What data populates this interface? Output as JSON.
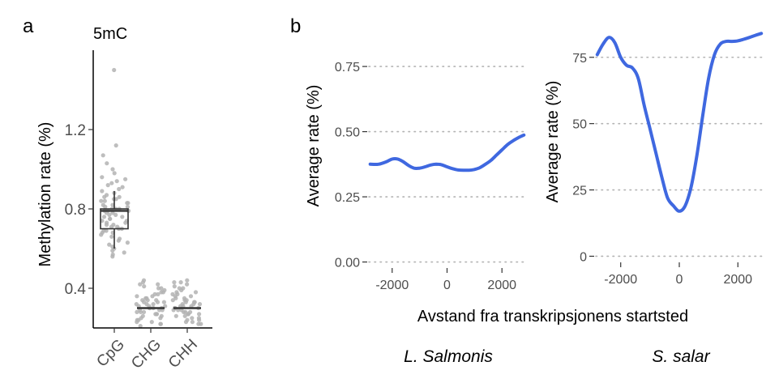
{
  "panel_a": {
    "letter": "a",
    "subtitle": "5mC"
  },
  "panel_b": {
    "letter": "b",
    "shared_xlabel": "Avstand fra transkripsjonens startsted"
  },
  "chart_data": [
    {
      "type": "box",
      "panel": "a",
      "title": "5mC",
      "xlabel": "",
      "ylabel": "Methylation rate (%)",
      "categories": [
        "CpG",
        "CHG",
        "CHH"
      ],
      "ylim": [
        0.2,
        1.6
      ],
      "yticks": [
        0.4,
        0.8,
        1.2
      ],
      "ytick_labels": [
        "0.4",
        "0.8",
        "1.2"
      ],
      "boxes": [
        {
          "category": "CpG",
          "min": 0.6,
          "q1": 0.7,
          "median": 0.79,
          "q3": 0.8,
          "max": 0.89
        },
        {
          "category": "CHG",
          "min": 0.3,
          "q1": 0.3,
          "median": 0.3,
          "q3": 0.3,
          "max": 0.3
        },
        {
          "category": "CHH",
          "min": 0.3,
          "q1": 0.3,
          "median": 0.3,
          "q3": 0.3,
          "max": 0.3
        }
      ],
      "points": {
        "CpG": [
          1.5,
          1.12,
          1.07,
          1.03,
          1.0,
          0.98,
          0.96,
          0.95,
          0.94,
          0.93,
          0.92,
          0.91,
          0.9,
          0.89,
          0.88,
          0.87,
          0.86,
          0.86,
          0.85,
          0.85,
          0.84,
          0.84,
          0.83,
          0.83,
          0.82,
          0.82,
          0.81,
          0.81,
          0.8,
          0.8,
          0.8,
          0.79,
          0.79,
          0.79,
          0.78,
          0.78,
          0.77,
          0.77,
          0.76,
          0.76,
          0.75,
          0.75,
          0.74,
          0.74,
          0.73,
          0.73,
          0.72,
          0.72,
          0.71,
          0.71,
          0.7,
          0.7,
          0.69,
          0.69,
          0.68,
          0.68,
          0.67,
          0.66,
          0.65,
          0.64,
          0.63,
          0.62,
          0.61,
          0.6,
          0.59,
          0.58,
          0.57,
          0.56
        ],
        "CHG": [
          0.44,
          0.43,
          0.42,
          0.42,
          0.41,
          0.4,
          0.4,
          0.39,
          0.38,
          0.38,
          0.37,
          0.37,
          0.36,
          0.36,
          0.35,
          0.35,
          0.34,
          0.34,
          0.34,
          0.33,
          0.33,
          0.33,
          0.32,
          0.32,
          0.32,
          0.31,
          0.31,
          0.31,
          0.3,
          0.3,
          0.3,
          0.3,
          0.29,
          0.29,
          0.29,
          0.28,
          0.28,
          0.28,
          0.27,
          0.27,
          0.27,
          0.26,
          0.26,
          0.25,
          0.25,
          0.24,
          0.24,
          0.23,
          0.23,
          0.22,
          0.22,
          0.21
        ],
        "CHH": [
          0.44,
          0.43,
          0.43,
          0.42,
          0.41,
          0.4,
          0.4,
          0.39,
          0.38,
          0.38,
          0.37,
          0.37,
          0.36,
          0.36,
          0.35,
          0.35,
          0.34,
          0.34,
          0.34,
          0.33,
          0.33,
          0.33,
          0.32,
          0.32,
          0.32,
          0.31,
          0.31,
          0.31,
          0.3,
          0.3,
          0.3,
          0.3,
          0.29,
          0.29,
          0.29,
          0.28,
          0.28,
          0.28,
          0.27,
          0.27,
          0.27,
          0.26,
          0.26,
          0.25,
          0.25,
          0.24,
          0.24,
          0.23,
          0.23,
          0.22,
          0.22
        ]
      },
      "point_color": "#b3b3b3",
      "box_color": "#333333"
    },
    {
      "type": "line",
      "panel": "b",
      "subtitle": "L. Salmonis",
      "xlabel": "Avstand fra transkripsjonens startsted",
      "ylabel": "Average rate (%)",
      "xlim": [
        -2850,
        2850
      ],
      "ylim": [
        -0.02,
        0.8
      ],
      "xticks": [
        -2000,
        0,
        2000
      ],
      "xtick_labels": [
        "-2000",
        "0",
        "2000"
      ],
      "yticks": [
        0,
        0.25,
        0.5,
        0.75
      ],
      "ytick_labels": [
        "0.00",
        "0.25",
        "0.50",
        "0.75"
      ],
      "grid": "horizontal-dotted",
      "color": "#3f68e0",
      "x": [
        -2800,
        -2500,
        -2200,
        -2000,
        -1800,
        -1600,
        -1400,
        -1200,
        -1000,
        -800,
        -600,
        -400,
        -200,
        0,
        200,
        400,
        600,
        800,
        1000,
        1200,
        1400,
        1600,
        1800,
        2000,
        2200,
        2400,
        2600,
        2800
      ],
      "y": [
        0.375,
        0.375,
        0.385,
        0.395,
        0.395,
        0.385,
        0.37,
        0.36,
        0.36,
        0.365,
        0.372,
        0.375,
        0.373,
        0.365,
        0.358,
        0.353,
        0.352,
        0.352,
        0.355,
        0.362,
        0.375,
        0.39,
        0.41,
        0.43,
        0.45,
        0.465,
        0.477,
        0.487
      ]
    },
    {
      "type": "line",
      "panel": "b",
      "subtitle": "S. salar",
      "xlabel": "Avstand fra transkripsjonens startsted",
      "ylabel": "Average rate (%)",
      "xlim": [
        -2850,
        2850
      ],
      "ylim": [
        -2,
        85
      ],
      "xticks": [
        -2000,
        0,
        2000
      ],
      "xtick_labels": [
        "-2000",
        "0",
        "2000"
      ],
      "yticks": [
        0,
        25,
        50,
        75
      ],
      "ytick_labels": [
        "0",
        "25",
        "50",
        "75"
      ],
      "grid": "horizontal-dotted",
      "color": "#3f68e0",
      "x": [
        -2800,
        -2600,
        -2400,
        -2200,
        -2000,
        -1800,
        -1600,
        -1400,
        -1200,
        -1000,
        -800,
        -600,
        -400,
        -200,
        0,
        200,
        400,
        600,
        800,
        1000,
        1200,
        1400,
        1600,
        1800,
        2000,
        2200,
        2400,
        2600,
        2800
      ],
      "y": [
        76,
        80,
        82.5,
        80.5,
        75,
        72,
        71,
        67,
        57,
        48,
        39,
        30,
        22,
        19,
        17,
        19,
        26,
        38,
        53,
        67,
        76,
        80,
        81,
        81,
        81.2,
        81.8,
        82.5,
        83.3,
        84
      ]
    }
  ]
}
